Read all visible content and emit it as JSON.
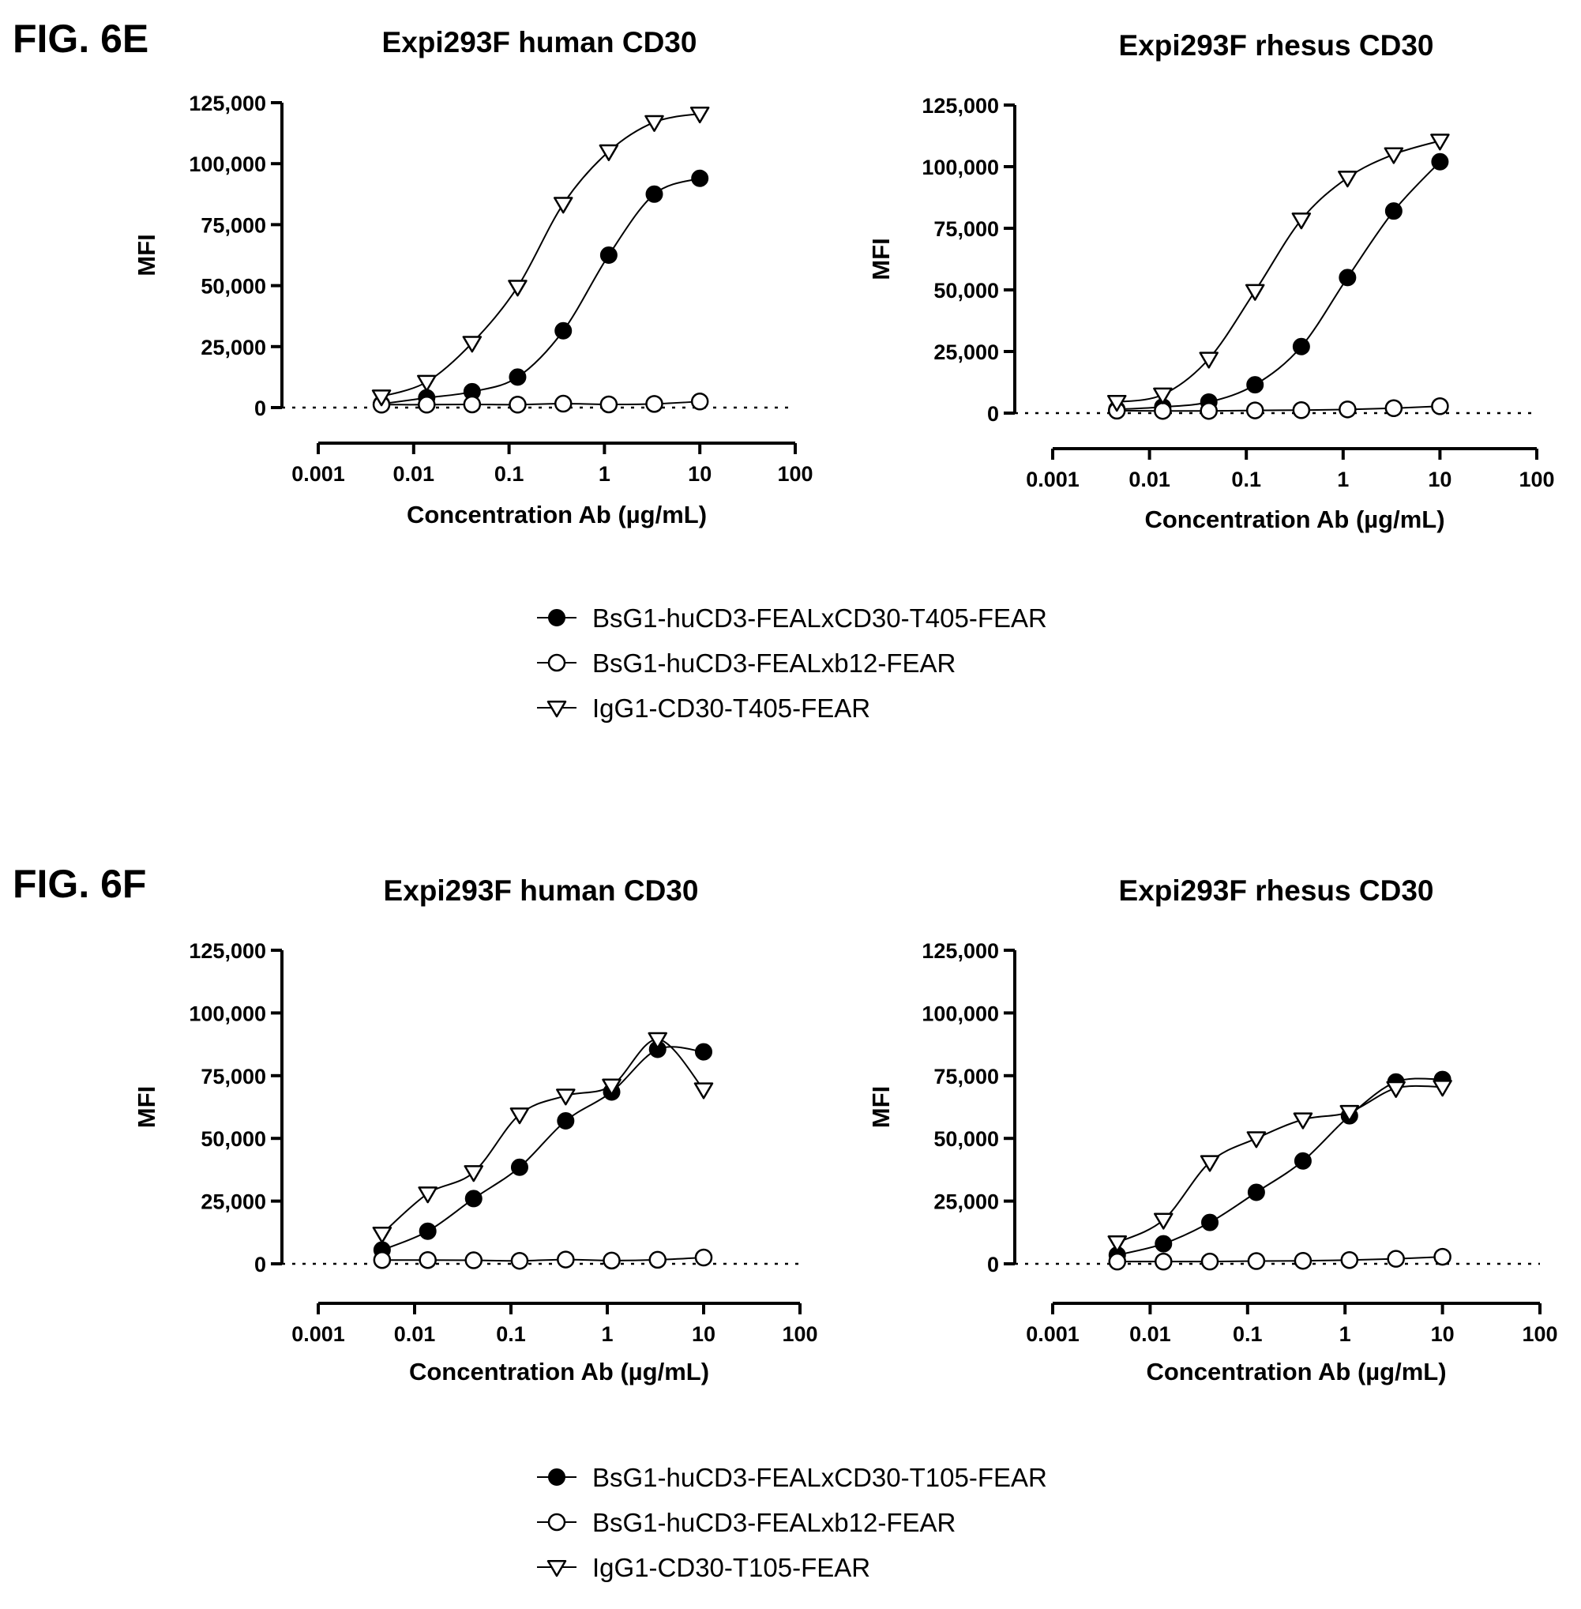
{
  "figures": [
    {
      "label": "FIG. 6E",
      "legend": [
        {
          "marker": "filled-circle",
          "label": "BsG1-huCD3-FEALxCD30-T405-FEAR"
        },
        {
          "marker": "open-circle",
          "label": "BsG1-huCD3-FEALxb12-FEAR"
        },
        {
          "marker": "open-triangle-down",
          "label": "IgG1-CD30-T405-FEAR"
        }
      ]
    },
    {
      "label": "FIG. 6F",
      "legend": [
        {
          "marker": "filled-circle",
          "label": "BsG1-huCD3-FEALxCD30-T105-FEAR"
        },
        {
          "marker": "open-circle",
          "label": "BsG1-huCD3-FEALxb12-FEAR"
        },
        {
          "marker": "open-triangle-down",
          "label": "IgG1-CD30-T105-FEAR"
        }
      ]
    }
  ],
  "chart_data": [
    {
      "type": "scatter",
      "figure": "FIG. 6E",
      "title": "Expi293F human CD30",
      "xlabel": "Concentration Ab (µg/mL)",
      "ylabel": "MFI",
      "xscale": "log",
      "xlim": [
        0.001,
        100
      ],
      "ylim": [
        0,
        125000
      ],
      "xticks": [
        "0.001",
        "0.01",
        "0.1",
        "1",
        "10",
        "100"
      ],
      "yticks": [
        "0",
        "25,000",
        "50,000",
        "75,000",
        "100,000",
        "125,000"
      ],
      "x": [
        0.0046,
        0.0137,
        0.041,
        0.123,
        0.37,
        1.11,
        3.33,
        10
      ],
      "series": [
        {
          "name": "BsG1-huCD3-FEALxCD30-T405-FEAR",
          "marker": "filled-circle",
          "values": [
            1500,
            4000,
            6500,
            12500,
            31500,
            62500,
            87500,
            94000
          ]
        },
        {
          "name": "BsG1-huCD3-FEALxb12-FEAR",
          "marker": "open-circle",
          "values": [
            1200,
            1200,
            1300,
            1200,
            1600,
            1300,
            1500,
            2500
          ]
        },
        {
          "name": "IgG1-CD30-T405-FEAR",
          "marker": "open-triangle-down",
          "values": [
            4500,
            10500,
            26500,
            49500,
            83500,
            105000,
            117000,
            120500
          ]
        }
      ],
      "baseline": {
        "y": 0,
        "style": "dotted"
      },
      "grid": false
    },
    {
      "type": "scatter",
      "figure": "FIG. 6E",
      "title": "Expi293F rhesus CD30",
      "xlabel": "Concentration Ab (µg/mL)",
      "ylabel": "MFI",
      "xscale": "log",
      "xlim": [
        0.001,
        100
      ],
      "ylim": [
        0,
        125000
      ],
      "xticks": [
        "0.001",
        "0.01",
        "0.1",
        "1",
        "10",
        "100"
      ],
      "yticks": [
        "0",
        "25,000",
        "50,000",
        "75,000",
        "100,000",
        "125,000"
      ],
      "x": [
        0.0046,
        0.0137,
        0.041,
        0.123,
        0.37,
        1.11,
        3.33,
        10
      ],
      "series": [
        {
          "name": "BsG1-huCD3-FEALxCD30-T405-FEAR",
          "marker": "filled-circle",
          "values": [
            1500,
            2500,
            4500,
            11500,
            27000,
            55000,
            82000,
            102000
          ]
        },
        {
          "name": "BsG1-huCD3-FEALxb12-FEAR",
          "marker": "open-circle",
          "values": [
            1000,
            900,
            900,
            1100,
            1200,
            1500,
            2000,
            2800
          ]
        },
        {
          "name": "IgG1-CD30-T405-FEAR",
          "marker": "open-triangle-down",
          "values": [
            4500,
            7500,
            22000,
            49500,
            78500,
            95500,
            105000,
            110500
          ]
        }
      ],
      "baseline": {
        "y": 0,
        "style": "dotted"
      },
      "grid": false
    },
    {
      "type": "scatter",
      "figure": "FIG. 6F",
      "title": "Expi293F human CD30",
      "xlabel": "Concentration Ab (µg/mL)",
      "ylabel": "MFI",
      "xscale": "log",
      "xlim": [
        0.001,
        100
      ],
      "ylim": [
        0,
        125000
      ],
      "xticks": [
        "0.001",
        "0.01",
        "0.1",
        "1",
        "10",
        "100"
      ],
      "yticks": [
        "0",
        "25,000",
        "50,000",
        "75,000",
        "100,000",
        "125,000"
      ],
      "x": [
        0.0046,
        0.0137,
        0.041,
        0.123,
        0.37,
        1.11,
        3.33,
        10
      ],
      "series": [
        {
          "name": "BsG1-huCD3-FEALxCD30-T105-FEAR",
          "marker": "filled-circle",
          "values": [
            5500,
            13000,
            26000,
            38500,
            57000,
            68500,
            85500,
            84500
          ]
        },
        {
          "name": "BsG1-huCD3-FEALxb12-FEAR",
          "marker": "open-circle",
          "values": [
            1500,
            1500,
            1400,
            1200,
            1700,
            1300,
            1600,
            2500
          ]
        },
        {
          "name": "IgG1-CD30-T105-FEAR",
          "marker": "open-triangle-down",
          "values": [
            12000,
            28000,
            36500,
            59500,
            67000,
            71000,
            89500,
            69500
          ]
        }
      ],
      "baseline": {
        "y": 0,
        "style": "dotted"
      },
      "grid": false
    },
    {
      "type": "scatter",
      "figure": "FIG. 6F",
      "title": "Expi293F rhesus CD30",
      "xlabel": "Concentration Ab (µg/mL)",
      "ylabel": "MFI",
      "xscale": "log",
      "xlim": [
        0.001,
        100
      ],
      "ylim": [
        0,
        125000
      ],
      "xticks": [
        "0.001",
        "0.01",
        "0.1",
        "1",
        "10",
        "100"
      ],
      "yticks": [
        "0",
        "25,000",
        "50,000",
        "75,000",
        "100,000",
        "125,000"
      ],
      "x": [
        0.0046,
        0.0137,
        0.041,
        0.123,
        0.37,
        1.11,
        3.33,
        10
      ],
      "series": [
        {
          "name": "BsG1-huCD3-FEALxCD30-T105-FEAR",
          "marker": "filled-circle",
          "values": [
            3500,
            8000,
            16500,
            28500,
            41000,
            59000,
            72500,
            73500
          ]
        },
        {
          "name": "BsG1-huCD3-FEALxb12-FEAR",
          "marker": "open-circle",
          "values": [
            900,
            900,
            900,
            1100,
            1200,
            1500,
            2000,
            2800
          ]
        },
        {
          "name": "IgG1-CD30-T105-FEAR",
          "marker": "open-triangle-down",
          "values": [
            8500,
            17500,
            40500,
            50000,
            57500,
            60500,
            70000,
            70500
          ]
        }
      ],
      "baseline": {
        "y": 0,
        "style": "dotted"
      },
      "grid": false
    }
  ]
}
